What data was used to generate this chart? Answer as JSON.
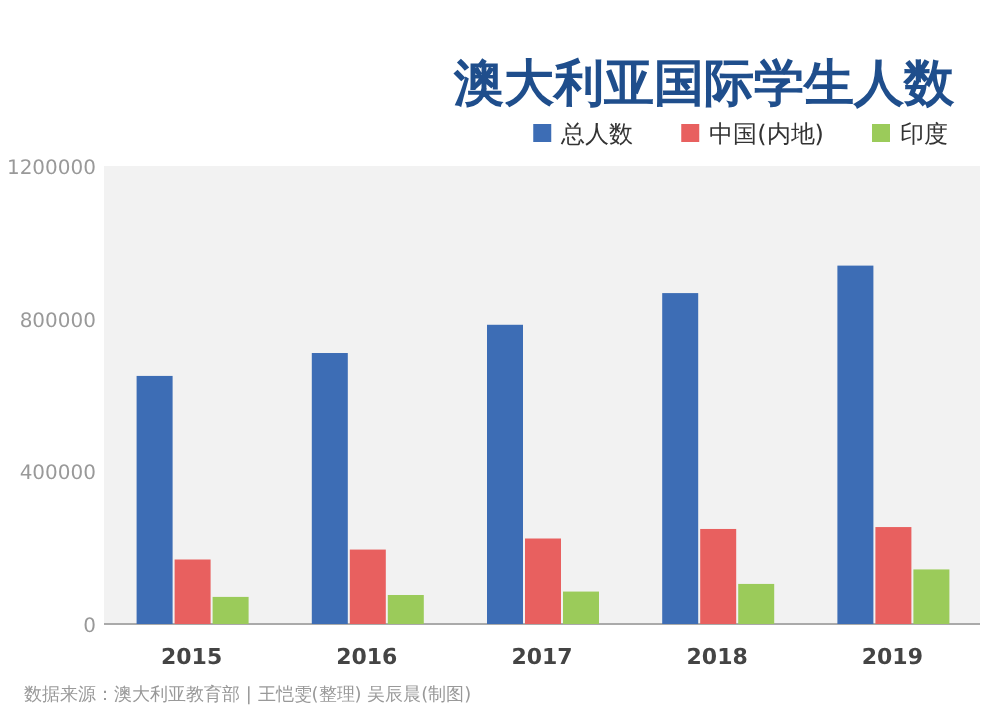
{
  "chart_data": {
    "type": "bar",
    "title": "澳大利亚国际学生人数",
    "categories": [
      "2015",
      "2016",
      "2017",
      "2018",
      "2019"
    ],
    "series": [
      {
        "name": "总人数",
        "color": "#3d6db5",
        "values": [
          650000,
          710000,
          784000,
          867000,
          939000
        ]
      },
      {
        "name": "中国(内地)",
        "color": "#e8605f",
        "values": [
          169000,
          195000,
          224000,
          249000,
          254000
        ]
      },
      {
        "name": "印度",
        "color": "#9bcb5a",
        "values": [
          71000,
          76000,
          85000,
          105000,
          143000
        ]
      }
    ],
    "ylim": [
      0,
      1200000
    ],
    "yticks": [
      0,
      400000,
      800000,
      1200000
    ],
    "legend": "top right",
    "annotations": [
      "数据来源：澳大利亚教育部 | 王恺雯(整理) 吴辰晨(制图)"
    ]
  }
}
